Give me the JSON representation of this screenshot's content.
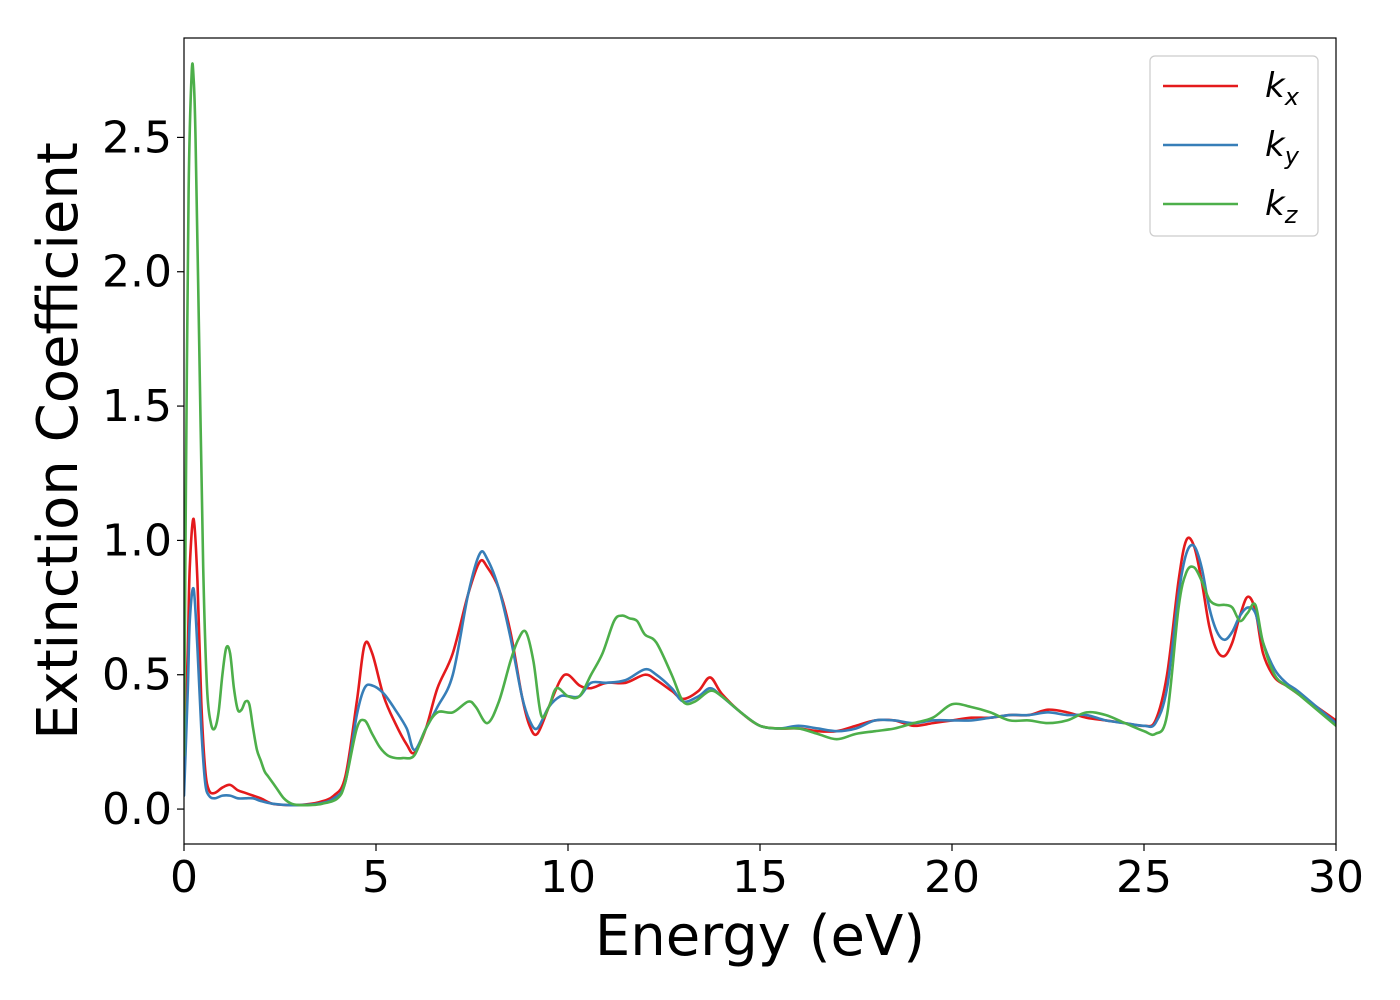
{
  "chart_data": {
    "type": "line",
    "title": "",
    "xlabel": "Energy (eV)",
    "ylabel": "Extinction Coefficient",
    "xlim": [
      0,
      30
    ],
    "ylim": [
      -0.13,
      2.87
    ],
    "xticks": [
      0,
      5,
      10,
      15,
      20,
      25,
      30
    ],
    "xtick_labels": [
      "0",
      "5",
      "10",
      "15",
      "20",
      "25",
      "30"
    ],
    "yticks": [
      0.0,
      0.5,
      1.0,
      1.5,
      2.0,
      2.5
    ],
    "ytick_labels": [
      "0.0",
      "0.5",
      "1.0",
      "1.5",
      "2.0",
      "2.5"
    ],
    "grid": false,
    "legend_position": "top-right",
    "series": [
      {
        "name": "k_x",
        "label_main": "k",
        "label_sub": "x",
        "color": "#e41a1c",
        "x": [
          0,
          0.1,
          0.15,
          0.25,
          0.35,
          0.45,
          0.55,
          0.65,
          0.8,
          1.0,
          1.2,
          1.4,
          1.6,
          1.8,
          2.0,
          2.3,
          2.7,
          3.0,
          3.5,
          3.9,
          4.2,
          4.5,
          4.7,
          4.9,
          5.2,
          5.5,
          5.8,
          6.0,
          6.3,
          6.6,
          7.0,
          7.4,
          7.7,
          7.9,
          8.2,
          8.5,
          8.8,
          9.0,
          9.2,
          9.5,
          9.8,
          10.0,
          10.3,
          10.6,
          11.0,
          11.5,
          12.0,
          12.3,
          12.7,
          13.0,
          13.4,
          13.7,
          14.0,
          14.5,
          15.0,
          15.5,
          16.0,
          16.5,
          17.0,
          17.5,
          18.0,
          18.5,
          19.0,
          19.5,
          20.0,
          20.5,
          21.0,
          21.5,
          22.0,
          22.5,
          23.0,
          23.5,
          24.0,
          24.5,
          25.0,
          25.3,
          25.6,
          25.9,
          26.1,
          26.3,
          26.5,
          26.7,
          26.9,
          27.1,
          27.3,
          27.5,
          27.7,
          27.9,
          28.1,
          28.4,
          28.7,
          29.0,
          29.5,
          30.0
        ],
        "y": [
          0.1,
          0.6,
          0.9,
          1.08,
          0.85,
          0.4,
          0.15,
          0.07,
          0.06,
          0.08,
          0.09,
          0.07,
          0.06,
          0.05,
          0.04,
          0.02,
          0.015,
          0.015,
          0.025,
          0.05,
          0.12,
          0.4,
          0.61,
          0.58,
          0.42,
          0.32,
          0.24,
          0.21,
          0.3,
          0.45,
          0.58,
          0.8,
          0.92,
          0.9,
          0.82,
          0.66,
          0.42,
          0.31,
          0.28,
          0.38,
          0.48,
          0.5,
          0.46,
          0.45,
          0.47,
          0.47,
          0.5,
          0.48,
          0.44,
          0.41,
          0.44,
          0.49,
          0.43,
          0.36,
          0.31,
          0.3,
          0.3,
          0.29,
          0.29,
          0.31,
          0.33,
          0.33,
          0.31,
          0.32,
          0.33,
          0.34,
          0.34,
          0.35,
          0.35,
          0.37,
          0.36,
          0.34,
          0.33,
          0.32,
          0.31,
          0.33,
          0.5,
          0.85,
          1.0,
          0.98,
          0.85,
          0.68,
          0.59,
          0.57,
          0.62,
          0.72,
          0.79,
          0.74,
          0.58,
          0.49,
          0.46,
          0.43,
          0.38,
          0.33
        ]
      },
      {
        "name": "k_y",
        "label_main": "k",
        "label_sub": "y",
        "color": "#377eb8",
        "x": [
          0,
          0.1,
          0.15,
          0.25,
          0.35,
          0.45,
          0.55,
          0.65,
          0.8,
          1.0,
          1.2,
          1.4,
          1.6,
          1.8,
          2.0,
          2.3,
          2.7,
          3.0,
          3.5,
          3.9,
          4.2,
          4.5,
          4.7,
          4.9,
          5.2,
          5.5,
          5.8,
          6.0,
          6.3,
          6.6,
          7.0,
          7.4,
          7.7,
          7.9,
          8.2,
          8.5,
          8.8,
          9.0,
          9.2,
          9.5,
          9.8,
          10.0,
          10.3,
          10.6,
          11.0,
          11.5,
          12.0,
          12.3,
          12.7,
          13.0,
          13.4,
          13.7,
          14.0,
          14.5,
          15.0,
          15.5,
          16.0,
          16.5,
          17.0,
          17.5,
          18.0,
          18.5,
          19.0,
          19.5,
          20.0,
          20.5,
          21.0,
          21.5,
          22.0,
          22.5,
          23.0,
          23.5,
          24.0,
          24.5,
          25.0,
          25.3,
          25.6,
          25.9,
          26.1,
          26.3,
          26.5,
          26.7,
          26.9,
          27.1,
          27.3,
          27.5,
          27.7,
          27.9,
          28.1,
          28.4,
          28.7,
          29.0,
          29.5,
          30.0
        ],
        "y": [
          0.05,
          0.45,
          0.7,
          0.82,
          0.6,
          0.3,
          0.1,
          0.05,
          0.04,
          0.05,
          0.05,
          0.04,
          0.04,
          0.04,
          0.03,
          0.02,
          0.015,
          0.015,
          0.02,
          0.04,
          0.1,
          0.35,
          0.45,
          0.46,
          0.43,
          0.37,
          0.3,
          0.22,
          0.3,
          0.38,
          0.5,
          0.8,
          0.95,
          0.93,
          0.82,
          0.64,
          0.42,
          0.33,
          0.3,
          0.38,
          0.42,
          0.42,
          0.42,
          0.47,
          0.47,
          0.48,
          0.52,
          0.5,
          0.45,
          0.4,
          0.42,
          0.45,
          0.42,
          0.36,
          0.31,
          0.3,
          0.31,
          0.3,
          0.29,
          0.3,
          0.33,
          0.33,
          0.32,
          0.33,
          0.33,
          0.33,
          0.34,
          0.35,
          0.35,
          0.36,
          0.35,
          0.35,
          0.33,
          0.32,
          0.31,
          0.32,
          0.45,
          0.8,
          0.95,
          0.98,
          0.9,
          0.75,
          0.66,
          0.63,
          0.66,
          0.72,
          0.75,
          0.73,
          0.62,
          0.52,
          0.47,
          0.44,
          0.38,
          0.32
        ]
      },
      {
        "name": "k_z",
        "label_main": "k",
        "label_sub": "z",
        "color": "#4daf4a",
        "x": [
          0,
          0.05,
          0.12,
          0.2,
          0.25,
          0.3,
          0.4,
          0.5,
          0.6,
          0.7,
          0.8,
          0.9,
          1.0,
          1.1,
          1.2,
          1.3,
          1.4,
          1.5,
          1.6,
          1.7,
          1.8,
          1.9,
          2.0,
          2.1,
          2.2,
          2.4,
          2.6,
          2.8,
          3.0,
          3.3,
          3.6,
          4.0,
          4.2,
          4.5,
          4.7,
          4.9,
          5.1,
          5.3,
          5.5,
          5.7,
          6.0,
          6.3,
          6.6,
          7.0,
          7.4,
          7.6,
          7.9,
          8.2,
          8.5,
          8.7,
          8.9,
          9.1,
          9.3,
          9.5,
          9.7,
          10.0,
          10.3,
          10.6,
          10.9,
          11.2,
          11.4,
          11.6,
          11.8,
          12.0,
          12.3,
          12.7,
          13.0,
          13.3,
          13.7,
          14.0,
          14.5,
          15.0,
          15.5,
          16.0,
          16.5,
          17.0,
          17.5,
          18.0,
          18.5,
          19.0,
          19.5,
          20.0,
          20.5,
          21.0,
          21.5,
          22.0,
          22.5,
          23.0,
          23.5,
          24.0,
          24.5,
          25.0,
          25.3,
          25.6,
          25.9,
          26.1,
          26.3,
          26.5,
          26.7,
          26.9,
          27.1,
          27.3,
          27.5,
          27.7,
          27.9,
          28.1,
          28.4,
          28.7,
          29.0,
          29.5,
          30.0
        ],
        "y": [
          0.2,
          1.2,
          2.3,
          2.74,
          2.72,
          2.5,
          1.7,
          0.9,
          0.45,
          0.32,
          0.3,
          0.36,
          0.5,
          0.6,
          0.58,
          0.45,
          0.37,
          0.37,
          0.4,
          0.39,
          0.3,
          0.22,
          0.18,
          0.14,
          0.12,
          0.08,
          0.04,
          0.02,
          0.015,
          0.015,
          0.02,
          0.04,
          0.1,
          0.3,
          0.33,
          0.28,
          0.23,
          0.2,
          0.19,
          0.19,
          0.2,
          0.3,
          0.36,
          0.36,
          0.4,
          0.38,
          0.32,
          0.4,
          0.55,
          0.63,
          0.66,
          0.55,
          0.35,
          0.38,
          0.45,
          0.42,
          0.42,
          0.5,
          0.58,
          0.7,
          0.72,
          0.71,
          0.7,
          0.65,
          0.62,
          0.5,
          0.4,
          0.4,
          0.44,
          0.42,
          0.36,
          0.31,
          0.3,
          0.3,
          0.28,
          0.26,
          0.28,
          0.29,
          0.3,
          0.32,
          0.34,
          0.39,
          0.38,
          0.36,
          0.33,
          0.33,
          0.32,
          0.33,
          0.36,
          0.35,
          0.32,
          0.29,
          0.28,
          0.35,
          0.75,
          0.88,
          0.9,
          0.85,
          0.78,
          0.76,
          0.76,
          0.75,
          0.7,
          0.73,
          0.76,
          0.62,
          0.5,
          0.46,
          0.43,
          0.37,
          0.31
        ]
      }
    ]
  }
}
